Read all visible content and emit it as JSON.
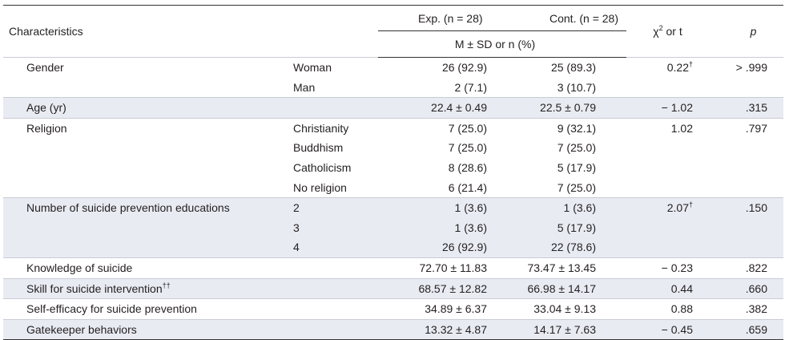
{
  "header": {
    "characteristics": "Characteristics",
    "exp": "Exp. (n = 28)",
    "cont": "Cont. (n = 28)",
    "stat": "M ± SD or n (%)",
    "chi_base": "χ",
    "chi_sup": "2",
    "chi_rest": " or t",
    "p": "p"
  },
  "rows": [
    {
      "char": "Gender",
      "sub": "Woman",
      "exp": "26 (92.9)",
      "cont": "25 (89.3)",
      "chi": "0.22",
      "chi_mark": "†",
      "p": "> .999"
    },
    {
      "char": "",
      "sub": "Man",
      "exp": "2 (7.1)",
      "cont": "3 (10.7)",
      "chi": "",
      "chi_mark": "",
      "p": ""
    },
    {
      "char": "Age (yr)",
      "sub": "",
      "exp": "22.4 ± 0.49",
      "cont": "22.5 ± 0.79",
      "chi": "− 1.02",
      "chi_mark": "",
      "p": ".315"
    },
    {
      "char": "Religion",
      "sub": "Christianity",
      "exp": "7 (25.0)",
      "cont": "9 (32.1)",
      "chi": "1.02",
      "chi_mark": "",
      "p": ".797"
    },
    {
      "char": "",
      "sub": "Buddhism",
      "exp": "7 (25.0)",
      "cont": "7 (25.0)",
      "chi": "",
      "chi_mark": "",
      "p": ""
    },
    {
      "char": "",
      "sub": "Catholicism",
      "exp": "8 (28.6)",
      "cont": "5 (17.9)",
      "chi": "",
      "chi_mark": "",
      "p": ""
    },
    {
      "char": "",
      "sub": "No religion",
      "exp": "6 (21.4)",
      "cont": "7 (25.0)",
      "chi": "",
      "chi_mark": "",
      "p": ""
    },
    {
      "char": "Number of suicide prevention educations",
      "sub": "2",
      "exp": "1 (3.6)",
      "cont": "1 (3.6)",
      "chi": "2.07",
      "chi_mark": "†",
      "p": ".150"
    },
    {
      "char": "",
      "sub": "3",
      "exp": "1 (3.6)",
      "cont": "5 (17.9)",
      "chi": "",
      "chi_mark": "",
      "p": ""
    },
    {
      "char": "",
      "sub": "4",
      "exp": "26 (92.9)",
      "cont": "22 (78.6)",
      "chi": "",
      "chi_mark": "",
      "p": ""
    },
    {
      "char": "Knowledge of suicide",
      "sub": "",
      "exp": "72.70 ± 11.83",
      "cont": "73.47 ± 13.45",
      "chi": "− 0.23",
      "chi_mark": "",
      "p": ".822"
    },
    {
      "char": "Skill for suicide intervention",
      "char_mark": "††",
      "sub": "",
      "exp": "68.57 ± 12.82",
      "cont": "66.98 ± 14.17",
      "chi": "0.44",
      "chi_mark": "",
      "p": ".660"
    },
    {
      "char": "Self-efficacy for suicide prevention",
      "sub": "",
      "exp": "34.89 ± 6.37",
      "cont": "33.04 ± 9.13",
      "chi": "0.88",
      "chi_mark": "",
      "p": ".382"
    },
    {
      "char": "Gatekeeper behaviors",
      "sub": "",
      "exp": "13.32 ± 4.87",
      "cont": "14.17 ± 7.63",
      "chi": "− 0.45",
      "chi_mark": "",
      "p": ".659"
    }
  ]
}
